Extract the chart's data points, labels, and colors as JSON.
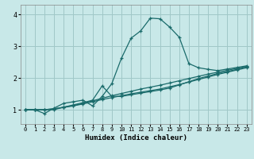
{
  "title": "",
  "xlabel": "Humidex (Indice chaleur)",
  "ylabel": "",
  "background_color": "#c8e8e8",
  "grid_color": "#a0c8c8",
  "line_color": "#1a6b6b",
  "xlim": [
    -0.5,
    23.5
  ],
  "ylim": [
    0.55,
    4.3
  ],
  "xticks": [
    0,
    1,
    2,
    3,
    4,
    5,
    6,
    7,
    8,
    9,
    10,
    11,
    12,
    13,
    14,
    15,
    16,
    17,
    18,
    19,
    20,
    21,
    22,
    23
  ],
  "yticks": [
    1,
    2,
    3,
    4
  ],
  "curve1_x": [
    0,
    1,
    2,
    3,
    4,
    5,
    6,
    7,
    8,
    9,
    10,
    11,
    12,
    13,
    14,
    15,
    16,
    17,
    18,
    19,
    20,
    21,
    22,
    23
  ],
  "curve1_y": [
    1.0,
    1.0,
    0.88,
    1.05,
    1.2,
    1.25,
    1.3,
    1.12,
    1.42,
    1.82,
    2.62,
    3.25,
    3.48,
    3.88,
    3.86,
    3.6,
    3.28,
    2.45,
    2.32,
    2.27,
    2.23,
    2.28,
    2.33,
    2.38
  ],
  "curve2_x": [
    0,
    1,
    2,
    3,
    4,
    5,
    6,
    7,
    8,
    9,
    10,
    11,
    12,
    13,
    14,
    15,
    16,
    17,
    18,
    19,
    20,
    21,
    22,
    23
  ],
  "curve2_y": [
    1.0,
    1.0,
    1.0,
    1.0,
    1.08,
    1.15,
    1.22,
    1.3,
    1.75,
    1.42,
    1.42,
    1.47,
    1.52,
    1.57,
    1.62,
    1.68,
    1.78,
    1.88,
    1.98,
    2.06,
    2.14,
    2.2,
    2.27,
    2.35
  ],
  "curve3_x": [
    0,
    1,
    2,
    3,
    4,
    5,
    6,
    7,
    8,
    9,
    10,
    11,
    12,
    13,
    14,
    15,
    16,
    17,
    18,
    19,
    20,
    21,
    22,
    23
  ],
  "curve3_y": [
    1.0,
    1.0,
    1.0,
    1.03,
    1.07,
    1.12,
    1.18,
    1.25,
    1.32,
    1.38,
    1.44,
    1.5,
    1.55,
    1.6,
    1.65,
    1.72,
    1.79,
    1.87,
    1.95,
    2.03,
    2.11,
    2.18,
    2.25,
    2.32
  ],
  "curve4_x": [
    0,
    1,
    2,
    3,
    4,
    5,
    6,
    7,
    8,
    9,
    10,
    11,
    12,
    13,
    14,
    15,
    16,
    17,
    18,
    19,
    20,
    21,
    22,
    23
  ],
  "curve4_y": [
    1.0,
    1.0,
    1.0,
    1.03,
    1.08,
    1.13,
    1.2,
    1.28,
    1.36,
    1.44,
    1.51,
    1.58,
    1.65,
    1.71,
    1.77,
    1.84,
    1.91,
    1.98,
    2.05,
    2.12,
    2.18,
    2.24,
    2.3,
    2.36
  ]
}
